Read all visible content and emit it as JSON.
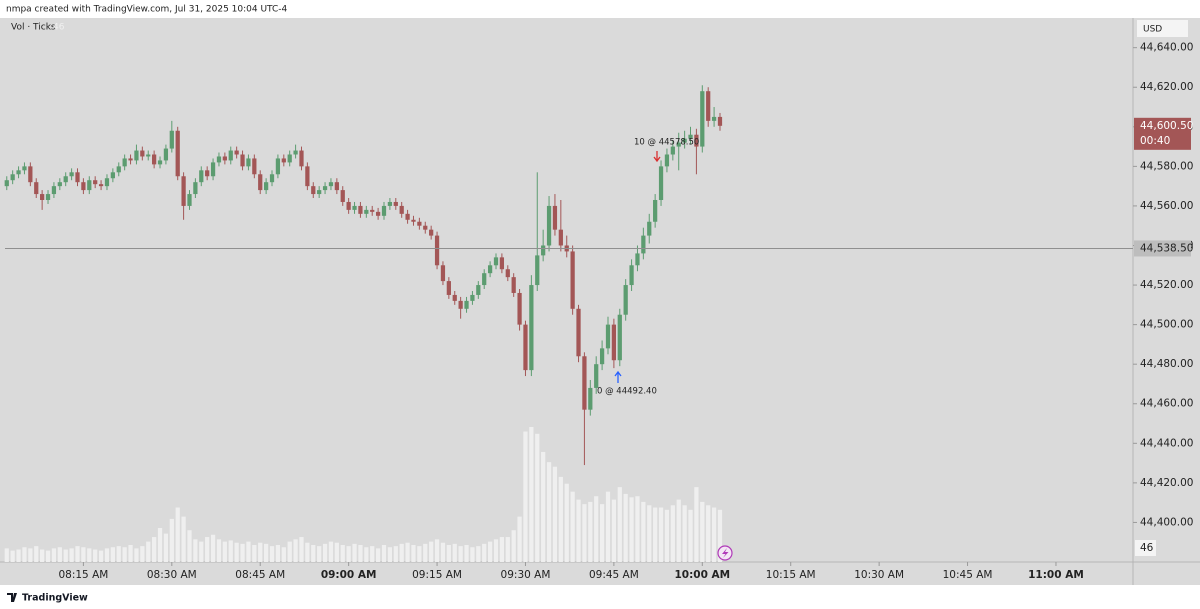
{
  "header": "nmpa created with TradingView.com, Jul 31, 2025 10:04 UTC-4",
  "footer": "TradingView",
  "chart_data": {
    "type": "candlestick",
    "currency": "USD",
    "volume_label": "Vol · Ticks",
    "x": [
      482,
      483,
      484,
      485,
      486,
      487,
      488,
      489,
      490,
      491,
      492,
      493,
      494,
      495,
      496,
      497,
      498,
      499,
      500,
      501,
      502,
      503,
      504,
      505,
      506,
      507,
      508,
      509,
      510,
      511,
      512,
      513,
      514,
      515,
      516,
      517,
      518,
      519,
      520,
      521,
      522,
      523,
      524,
      525,
      526,
      527,
      528,
      529,
      530,
      531,
      532,
      533,
      534,
      535,
      536,
      537,
      538,
      539,
      540,
      541,
      542,
      543,
      544,
      545,
      546,
      547,
      548,
      549,
      550,
      551,
      552,
      553,
      554,
      555,
      556,
      557,
      558,
      559,
      560,
      561,
      562,
      563,
      564,
      565,
      566,
      567,
      568,
      569,
      570,
      571,
      572,
      573,
      574,
      575,
      576,
      577,
      578,
      579,
      580,
      581,
      582,
      583,
      584,
      585,
      586,
      587,
      588,
      589,
      590,
      591,
      592,
      593,
      594,
      595,
      596,
      597,
      598,
      599,
      600,
      601,
      602,
      603
    ],
    "open": [
      44570,
      44573,
      44576,
      44578,
      44580,
      44572,
      44566,
      44563,
      44566,
      44570,
      44572,
      44575,
      44577,
      44572,
      44568,
      44573,
      44571,
      44570,
      44574,
      44577,
      44580,
      44584,
      44583,
      44588,
      44585,
      44586,
      44581,
      44583,
      44589,
      44598,
      44575,
      44560,
      44566,
      44572,
      44578,
      44575,
      44582,
      44585,
      44583,
      44588,
      44586,
      44580,
      44584,
      44576,
      44568,
      44572,
      44576,
      44584,
      44582,
      44586,
      44588,
      44580,
      44570,
      44566,
      44568,
      44570,
      44572,
      44568,
      44562,
      44558,
      44560,
      44556,
      44558,
      44557,
      44555,
      44560,
      44562,
      44560,
      44556,
      44553,
      44552,
      44550,
      44548,
      44545,
      44530,
      44522,
      44515,
      44512,
      44508,
      44512,
      44515,
      44520,
      44526,
      44530,
      44534,
      44528,
      44524,
      44516,
      44500,
      44477,
      44520,
      44535,
      44540,
      44560,
      44548,
      44540,
      44537,
      44508,
      44484,
      44457,
      44468,
      44480,
      44488,
      44500,
      44482,
      44505,
      44520,
      44530,
      44536,
      44545,
      44552,
      44563,
      44580,
      44586,
      44590,
      44592,
      44594,
      44596,
      44590,
      44618,
      44603,
      44605
    ],
    "high": [
      44575,
      44578,
      44580,
      44582,
      44582,
      44574,
      44568,
      44568,
      44572,
      44574,
      44577,
      44579,
      44579,
      44574,
      44575,
      44575,
      44573,
      44576,
      44579,
      44582,
      44586,
      44586,
      44591,
      44590,
      44588,
      44588,
      44585,
      44591,
      44603,
      44600,
      44577,
      44568,
      44574,
      44580,
      44580,
      44584,
      44587,
      44587,
      44590,
      44590,
      44588,
      44586,
      44586,
      44578,
      44574,
      44578,
      44586,
      44586,
      44588,
      44591,
      44590,
      44582,
      44572,
      44570,
      44572,
      44574,
      44574,
      44570,
      44564,
      44562,
      44562,
      44560,
      44560,
      44559,
      44562,
      44564,
      44564,
      44562,
      44558,
      44555,
      44554,
      44552,
      44550,
      44547,
      44532,
      44524,
      44517,
      44514,
      44514,
      44517,
      44522,
      44528,
      44532,
      44536,
      44536,
      44530,
      44526,
      44518,
      44502,
      44525,
      44577,
      44548,
      44565,
      44566,
      44563,
      44545,
      44540,
      44510,
      44486,
      44472,
      44484,
      44492,
      44504,
      44503,
      44508,
      44523,
      44533,
      44540,
      44549,
      44556,
      44566,
      44583,
      44589,
      44593,
      44597,
      44598,
      44600,
      44599,
      44621,
      44620,
      44610,
      44607
    ],
    "low": [
      44568,
      44571,
      44574,
      44576,
      44570,
      44564,
      44558,
      44561,
      44564,
      44568,
      44570,
      44573,
      44570,
      44566,
      44566,
      44569,
      44568,
      44568,
      44572,
      44575,
      44578,
      44581,
      44581,
      44583,
      44583,
      44579,
      44579,
      44581,
      44587,
      44573,
      44553,
      44558,
      44564,
      44570,
      44573,
      44573,
      44580,
      44581,
      44581,
      44584,
      44578,
      44578,
      44574,
      44566,
      44566,
      44570,
      44574,
      44580,
      44580,
      44584,
      44578,
      44568,
      44564,
      44564,
      44566,
      44568,
      44566,
      44560,
      44556,
      44556,
      44554,
      44554,
      44555,
      44553,
      44553,
      44558,
      44558,
      44554,
      44551,
      44550,
      44548,
      44546,
      44543,
      44528,
      44520,
      44513,
      44510,
      44503,
      44506,
      44510,
      44513,
      44518,
      44524,
      44528,
      44526,
      44522,
      44514,
      44497,
      44474,
      44474,
      44517,
      44532,
      44537,
      44545,
      44537,
      44534,
      44505,
      44481,
      44429,
      44454,
      44465,
      44477,
      44485,
      44478,
      44479,
      44502,
      44517,
      44527,
      44533,
      44541,
      44549,
      44560,
      44577,
      44583,
      44578,
      44589,
      44591,
      44576,
      44587,
      44600,
      44600,
      44598
    ],
    "close": [
      44573,
      44576,
      44578,
      44580,
      44572,
      44566,
      44563,
      44566,
      44570,
      44572,
      44575,
      44577,
      44572,
      44568,
      44573,
      44571,
      44570,
      44574,
      44577,
      44580,
      44584,
      44583,
      44588,
      44585,
      44586,
      44581,
      44583,
      44589,
      44598,
      44575,
      44560,
      44566,
      44572,
      44578,
      44575,
      44582,
      44585,
      44583,
      44588,
      44586,
      44580,
      44584,
      44576,
      44568,
      44572,
      44576,
      44584,
      44582,
      44586,
      44588,
      44580,
      44570,
      44566,
      44568,
      44570,
      44572,
      44568,
      44562,
      44558,
      44560,
      44556,
      44558,
      44557,
      44555,
      44560,
      44562,
      44560,
      44556,
      44553,
      44552,
      44550,
      44548,
      44545,
      44530,
      44522,
      44515,
      44512,
      44508,
      44512,
      44515,
      44520,
      44526,
      44530,
      44534,
      44528,
      44524,
      44516,
      44500,
      44477,
      44520,
      44535,
      44540,
      44560,
      44548,
      44540,
      44537,
      44508,
      44484,
      44457,
      44468,
      44480,
      44488,
      44500,
      44482,
      44505,
      44520,
      44530,
      44536,
      44545,
      44552,
      44563,
      44580,
      44586,
      44590,
      44592,
      44594,
      44596,
      44590,
      44618,
      44603,
      44605,
      44600.5
    ],
    "volume": [
      12,
      10,
      11,
      13,
      12,
      14,
      11,
      10,
      12,
      13,
      11,
      12,
      14,
      13,
      12,
      11,
      10,
      12,
      13,
      14,
      13,
      15,
      12,
      14,
      18,
      22,
      30,
      25,
      38,
      48,
      40,
      28,
      20,
      18,
      22,
      24,
      20,
      18,
      19,
      17,
      16,
      18,
      15,
      17,
      16,
      14,
      15,
      13,
      18,
      20,
      22,
      17,
      15,
      14,
      16,
      18,
      17,
      15,
      14,
      16,
      15,
      13,
      14,
      12,
      15,
      13,
      14,
      16,
      17,
      15,
      14,
      16,
      18,
      20,
      17,
      15,
      16,
      14,
      15,
      13,
      14,
      16,
      18,
      20,
      22,
      22,
      28,
      40,
      115,
      119,
      113,
      97,
      88,
      84,
      75,
      69,
      62,
      55,
      51,
      53,
      58,
      51,
      62,
      55,
      66,
      60,
      57,
      58,
      53,
      50,
      48,
      48,
      46,
      50,
      55,
      50,
      46,
      66,
      53,
      50,
      48,
      46
    ],
    "up_color": "#5c9c70",
    "down_color": "#a35656",
    "volume_color": "#efefef",
    "ylim": [
      44380,
      44655
    ],
    "yticks": [
      {
        "value": 44400,
        "label": "44,400.00"
      },
      {
        "value": 44420,
        "label": "44,420.00"
      },
      {
        "value": 44440,
        "label": "44,440.00"
      },
      {
        "value": 44460,
        "label": "44,460.00"
      },
      {
        "value": 44480,
        "label": "44,480.00"
      },
      {
        "value": 44500,
        "label": "44,500.00"
      },
      {
        "value": 44520,
        "label": "44,520.00"
      },
      {
        "value": 44540,
        "label": "44,540.00"
      },
      {
        "value": 44560,
        "label": "44,560.00"
      },
      {
        "value": 44580,
        "label": "44,580.00"
      },
      {
        "value": 44600,
        "label": "44,600.00"
      },
      {
        "value": 44620,
        "label": "44,620.00"
      },
      {
        "value": 44640,
        "label": "44,640.00"
      }
    ],
    "xlim": [
      481.7,
      672.9
    ],
    "xticks": [
      {
        "value": 495,
        "label": "08:15 AM"
      },
      {
        "value": 510,
        "label": "08:30 AM"
      },
      {
        "value": 525,
        "label": "08:45 AM"
      },
      {
        "value": 540,
        "label": "09:00 AM"
      },
      {
        "value": 555,
        "label": "09:15 AM"
      },
      {
        "value": 570,
        "label": "09:30 AM"
      },
      {
        "value": 585,
        "label": "09:45 AM"
      },
      {
        "value": 600,
        "label": "10:00 AM"
      },
      {
        "value": 615,
        "label": "10:15 AM"
      },
      {
        "value": 630,
        "label": "10:30 AM"
      },
      {
        "value": 645,
        "label": "10:45 AM"
      },
      {
        "value": 660,
        "label": "11:00 AM"
      }
    ],
    "last_price": {
      "value": 44600.5,
      "label": "44,600.50"
    },
    "countdown": "00:40",
    "price_line": {
      "value": 44538.5,
      "label": "44,538.50"
    },
    "annotations": [
      {
        "text": "10 @ 44578.50"
      },
      {
        "text": "0 @ 44492.40"
      }
    ]
  }
}
